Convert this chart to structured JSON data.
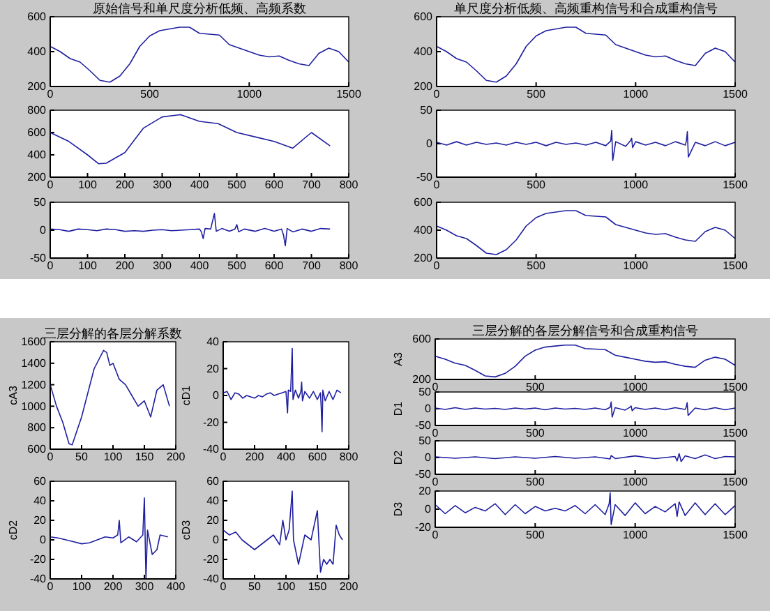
{
  "chart_data": [
    {
      "type": "line",
      "title": "原始信号和单尺度分析低频、高频系数",
      "x": [
        0,
        50,
        100,
        150,
        200,
        250,
        300,
        350,
        400,
        450,
        500,
        550,
        600,
        650,
        700,
        750,
        800,
        850,
        900,
        950,
        1000,
        1050,
        1100,
        1150,
        1200,
        1250,
        1300,
        1350,
        1400,
        1450,
        1500
      ],
      "values": [
        430,
        400,
        360,
        340,
        290,
        235,
        225,
        260,
        330,
        430,
        490,
        520,
        530,
        540,
        540,
        505,
        500,
        495,
        440,
        420,
        400,
        380,
        370,
        375,
        350,
        330,
        320,
        390,
        420,
        400,
        340
      ],
      "color": "#1f1fa0",
      "xlim": [
        0,
        1500
      ],
      "xticks": [
        0,
        500,
        1000,
        1500
      ],
      "ylim": [
        200,
        600
      ],
      "yticks": [
        200,
        400,
        600
      ]
    },
    {
      "type": "line",
      "x": [
        0,
        50,
        100,
        130,
        150,
        200,
        250,
        300,
        350,
        400,
        450,
        500,
        550,
        600,
        650,
        700,
        750
      ],
      "values": [
        600,
        520,
        400,
        320,
        325,
        420,
        640,
        740,
        760,
        700,
        680,
        600,
        560,
        520,
        460,
        600,
        480
      ],
      "color": "#1f1fa0",
      "xlim": [
        0,
        800
      ],
      "xticks": [
        0,
        100,
        200,
        300,
        400,
        500,
        600,
        700,
        800
      ],
      "ylim": [
        200,
        800
      ],
      "yticks": [
        200,
        400,
        600,
        800
      ]
    },
    {
      "type": "line",
      "x": [
        0,
        25,
        50,
        75,
        100,
        125,
        150,
        175,
        200,
        225,
        250,
        275,
        300,
        325,
        350,
        375,
        400,
        405,
        410,
        415,
        430,
        440,
        445,
        460,
        480,
        495,
        500,
        505,
        520,
        550,
        575,
        600,
        620,
        625,
        630,
        635,
        650,
        675,
        700,
        725,
        750
      ],
      "values": [
        2,
        1,
        -2,
        2,
        1,
        -1,
        2,
        1,
        -2,
        -1,
        -2,
        0,
        1,
        -1,
        0,
        1,
        2,
        -3,
        -15,
        3,
        2,
        30,
        -2,
        3,
        -2,
        2,
        10,
        -3,
        2,
        -2,
        3,
        -2,
        2,
        -8,
        -28,
        3,
        -3,
        2,
        -2,
        3,
        2
      ],
      "color": "#1f1fa0",
      "xlim": [
        0,
        800
      ],
      "xticks": [
        0,
        100,
        200,
        300,
        400,
        500,
        600,
        700,
        800
      ],
      "ylim": [
        -50,
        50
      ],
      "yticks": [
        -50,
        0,
        50
      ]
    },
    {
      "type": "line",
      "title": "单尺度分析低频、高频重构信号和合成重构信号",
      "x": [
        0,
        50,
        100,
        150,
        200,
        250,
        300,
        350,
        400,
        450,
        500,
        550,
        600,
        650,
        700,
        750,
        800,
        850,
        900,
        950,
        1000,
        1050,
        1100,
        1150,
        1200,
        1250,
        1300,
        1350,
        1400,
        1450,
        1500
      ],
      "values": [
        430,
        400,
        360,
        340,
        290,
        235,
        225,
        260,
        330,
        430,
        490,
        520,
        530,
        540,
        540,
        505,
        500,
        495,
        440,
        420,
        400,
        380,
        370,
        375,
        350,
        330,
        320,
        390,
        420,
        400,
        340
      ],
      "color": "#1f1fa0",
      "xlim": [
        0,
        1500
      ],
      "xticks": [
        0,
        500,
        1000,
        1500
      ],
      "ylim": [
        200,
        600
      ],
      "yticks": [
        200,
        400,
        600
      ]
    },
    {
      "type": "line",
      "x": [
        0,
        50,
        100,
        150,
        200,
        250,
        300,
        350,
        400,
        450,
        500,
        550,
        600,
        650,
        700,
        750,
        800,
        850,
        875,
        880,
        885,
        900,
        950,
        975,
        980,
        985,
        1000,
        1050,
        1100,
        1150,
        1200,
        1250,
        1255,
        1260,
        1265,
        1300,
        1350,
        1400,
        1450,
        1500
      ],
      "values": [
        2,
        -2,
        3,
        -2,
        2,
        -1,
        1,
        -2,
        2,
        -1,
        2,
        -3,
        2,
        -1,
        1,
        -2,
        2,
        -3,
        4,
        20,
        -25,
        3,
        -4,
        5,
        8,
        -6,
        3,
        -2,
        2,
        -3,
        3,
        -2,
        4,
        18,
        -20,
        2,
        -3,
        3,
        -3,
        2
      ],
      "color": "#1f1fa0",
      "xlim": [
        0,
        1500
      ],
      "xticks": [
        0,
        500,
        1000,
        1500
      ],
      "ylim": [
        -50,
        50
      ],
      "yticks": [
        -50,
        0,
        50
      ]
    },
    {
      "type": "line",
      "x": [
        0,
        50,
        100,
        150,
        200,
        250,
        300,
        350,
        400,
        450,
        500,
        550,
        600,
        650,
        700,
        750,
        800,
        850,
        900,
        950,
        1000,
        1050,
        1100,
        1150,
        1200,
        1250,
        1300,
        1350,
        1400,
        1450,
        1500
      ],
      "values": [
        430,
        400,
        360,
        340,
        290,
        235,
        225,
        260,
        330,
        430,
        490,
        520,
        530,
        540,
        540,
        505,
        500,
        495,
        440,
        420,
        400,
        380,
        370,
        375,
        350,
        330,
        320,
        390,
        420,
        400,
        340
      ],
      "color": "#1f1fa0",
      "xlim": [
        0,
        1500
      ],
      "xticks": [
        0,
        500,
        1000,
        1500
      ],
      "ylim": [
        200,
        600
      ],
      "yticks": [
        200,
        400,
        600
      ]
    },
    {
      "type": "line",
      "title": "三层分解的各层分解系数",
      "ylabel": "cA3",
      "x": [
        0,
        10,
        20,
        30,
        35,
        50,
        70,
        85,
        90,
        95,
        100,
        110,
        120,
        130,
        140,
        150,
        160,
        170,
        180,
        190
      ],
      "values": [
        1200,
        1000,
        850,
        650,
        640,
        900,
        1350,
        1520,
        1500,
        1380,
        1400,
        1250,
        1200,
        1100,
        1000,
        1050,
        900,
        1150,
        1200,
        1000
      ],
      "color": "#1f1fa0",
      "xlim": [
        0,
        200
      ],
      "xticks": [
        0,
        50,
        100,
        150,
        200
      ],
      "ylim": [
        600,
        1600
      ],
      "yticks": [
        600,
        800,
        1000,
        1200,
        1400,
        1600
      ]
    },
    {
      "type": "line",
      "ylabel": "cD1",
      "x": [
        0,
        25,
        50,
        75,
        100,
        125,
        150,
        175,
        200,
        225,
        250,
        275,
        300,
        325,
        350,
        375,
        400,
        405,
        410,
        415,
        430,
        440,
        445,
        460,
        480,
        495,
        500,
        505,
        520,
        550,
        575,
        600,
        620,
        625,
        630,
        635,
        650,
        675,
        700,
        725,
        750
      ],
      "values": [
        2,
        3,
        -3,
        2,
        1,
        -2,
        0,
        -1,
        -2,
        0,
        -1,
        1,
        2,
        0,
        1,
        2,
        3,
        -5,
        -13,
        4,
        3,
        35,
        -3,
        4,
        -2,
        3,
        10,
        -4,
        3,
        -2,
        3,
        -3,
        2,
        -10,
        -27,
        4,
        -4,
        3,
        -3,
        4,
        2
      ],
      "color": "#1f1fa0",
      "xlim": [
        0,
        800
      ],
      "xticks": [
        0,
        200,
        400,
        600,
        800
      ],
      "ylim": [
        -40,
        40
      ],
      "yticks": [
        -40,
        -20,
        0,
        20,
        40
      ]
    },
    {
      "type": "line",
      "ylabel": "cD2",
      "x": [
        0,
        25,
        50,
        75,
        100,
        125,
        150,
        175,
        200,
        215,
        220,
        225,
        250,
        275,
        295,
        300,
        305,
        310,
        325,
        340,
        350,
        375
      ],
      "values": [
        3,
        2,
        0,
        -2,
        -4,
        -3,
        0,
        3,
        2,
        5,
        20,
        -3,
        3,
        -2,
        5,
        43,
        -40,
        10,
        -15,
        -10,
        5,
        3
      ],
      "color": "#1f1fa0",
      "xlim": [
        0,
        400
      ],
      "xticks": [
        0,
        100,
        200,
        300,
        400
      ],
      "ylim": [
        -40,
        60
      ],
      "yticks": [
        -40,
        -20,
        0,
        20,
        40,
        60
      ]
    },
    {
      "type": "line",
      "ylabel": "cD3",
      "x": [
        0,
        10,
        20,
        30,
        40,
        50,
        60,
        70,
        80,
        90,
        95,
        100,
        105,
        110,
        112,
        120,
        130,
        140,
        150,
        155,
        160,
        165,
        170,
        175,
        180,
        185,
        190
      ],
      "values": [
        10,
        5,
        8,
        0,
        -5,
        -10,
        -5,
        0,
        5,
        -5,
        20,
        0,
        10,
        50,
        0,
        -25,
        5,
        0,
        30,
        -33,
        -20,
        -25,
        -20,
        -25,
        15,
        5,
        0
      ],
      "color": "#1f1fa0",
      "xlim": [
        0,
        200
      ],
      "xticks": [
        0,
        50,
        100,
        150,
        200
      ],
      "ylim": [
        -40,
        60
      ],
      "yticks": [
        -40,
        -20,
        0,
        20,
        40,
        60
      ]
    },
    {
      "type": "line",
      "title": "三层分解的各层分解信号和合成重构信号",
      "ylabel": "A3",
      "x": [
        0,
        50,
        100,
        150,
        200,
        250,
        300,
        350,
        400,
        450,
        500,
        550,
        600,
        650,
        700,
        750,
        800,
        850,
        900,
        950,
        1000,
        1050,
        1100,
        1150,
        1200,
        1250,
        1300,
        1350,
        1400,
        1450,
        1500
      ],
      "values": [
        430,
        400,
        360,
        340,
        290,
        235,
        225,
        260,
        330,
        430,
        490,
        520,
        530,
        540,
        540,
        505,
        500,
        495,
        440,
        420,
        400,
        380,
        370,
        375,
        350,
        330,
        320,
        390,
        420,
        400,
        340
      ],
      "color": "#1f1fa0",
      "xlim": [
        0,
        1500
      ],
      "xticks": [
        0,
        500,
        1000,
        1500
      ],
      "ylim": [
        200,
        600
      ],
      "yticks": [
        200,
        600
      ]
    },
    {
      "type": "line",
      "ylabel": "D1",
      "x": [
        0,
        50,
        100,
        150,
        200,
        250,
        300,
        350,
        400,
        450,
        500,
        550,
        600,
        650,
        700,
        750,
        800,
        850,
        875,
        880,
        885,
        900,
        950,
        975,
        980,
        985,
        1000,
        1050,
        1100,
        1150,
        1200,
        1250,
        1255,
        1260,
        1265,
        1300,
        1350,
        1400,
        1450,
        1500
      ],
      "values": [
        2,
        -2,
        3,
        -2,
        2,
        -1,
        1,
        -2,
        2,
        -1,
        2,
        -3,
        2,
        -1,
        1,
        -2,
        2,
        -3,
        4,
        20,
        -25,
        3,
        -4,
        5,
        8,
        -6,
        3,
        -2,
        2,
        -3,
        3,
        -2,
        4,
        18,
        -20,
        2,
        -3,
        3,
        -3,
        2
      ],
      "color": "#1f1fa0",
      "xlim": [
        0,
        1500
      ],
      "xticks": [
        0,
        500,
        1000,
        1500
      ],
      "ylim": [
        -50,
        50
      ],
      "yticks": [
        -50,
        0,
        50
      ]
    },
    {
      "type": "line",
      "ylabel": "D2",
      "x": [
        0,
        100,
        200,
        300,
        400,
        500,
        600,
        700,
        800,
        875,
        880,
        900,
        1000,
        1100,
        1200,
        1210,
        1220,
        1230,
        1250,
        1300,
        1350,
        1400,
        1450,
        1500
      ],
      "values": [
        2,
        -2,
        2,
        -3,
        2,
        -2,
        3,
        -2,
        2,
        -4,
        6,
        -3,
        5,
        -3,
        3,
        -10,
        12,
        -12,
        5,
        -3,
        8,
        -3,
        3,
        2
      ],
      "color": "#1f1fa0",
      "xlim": [
        0,
        1500
      ],
      "xticks": [
        0,
        500,
        1000,
        1500
      ],
      "ylim": [
        -50,
        50
      ],
      "yticks": [
        -50,
        0,
        50
      ]
    },
    {
      "type": "line",
      "ylabel": "D3",
      "x": [
        0,
        50,
        100,
        150,
        200,
        250,
        300,
        350,
        400,
        450,
        500,
        550,
        600,
        650,
        700,
        750,
        800,
        850,
        870,
        875,
        880,
        900,
        950,
        1000,
        1050,
        1100,
        1150,
        1200,
        1210,
        1220,
        1250,
        1300,
        1350,
        1400,
        1450,
        1500
      ],
      "values": [
        5,
        -5,
        4,
        -4,
        2,
        -2,
        6,
        -6,
        5,
        -5,
        3,
        -2,
        1,
        -2,
        4,
        -5,
        5,
        -6,
        6,
        18,
        -17,
        5,
        -7,
        7,
        -5,
        3,
        -3,
        6,
        -8,
        8,
        -7,
        7,
        -6,
        6,
        -6,
        4
      ],
      "color": "#1f1fa0",
      "xlim": [
        0,
        1500
      ],
      "xticks": [
        0,
        500,
        1000,
        1500
      ],
      "ylim": [
        -20,
        20
      ],
      "yticks": [
        -20,
        0,
        20
      ]
    }
  ]
}
